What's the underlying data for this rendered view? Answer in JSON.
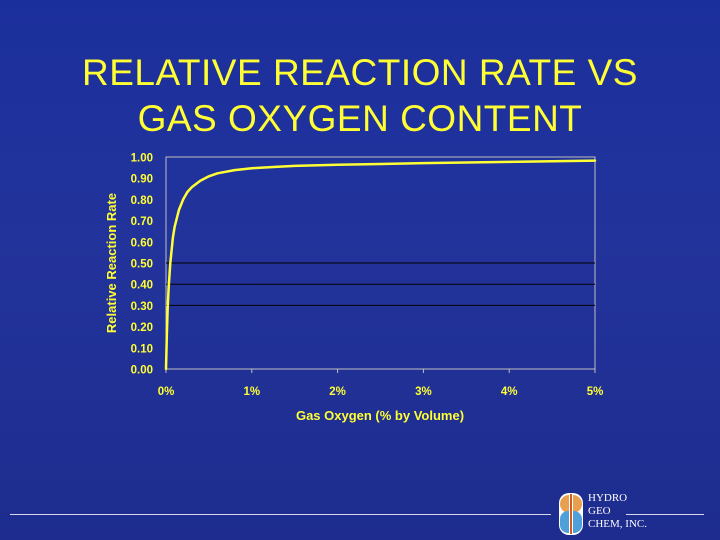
{
  "slide": {
    "title_lines": [
      "RELATIVE REACTION RATE VS",
      "GAS OXYGEN CONTENT"
    ]
  },
  "chart_data": {
    "type": "line",
    "xlabel": "Gas Oxygen (% by Volume)",
    "ylabel": "Relative Reaction Rate",
    "xlim": [
      0,
      5
    ],
    "ylim": [
      0,
      1
    ],
    "x_ticks": [
      "0%",
      "1%",
      "2%",
      "3%",
      "4%",
      "5%"
    ],
    "y_ticks": [
      "0.00",
      "0.10",
      "0.20",
      "0.30",
      "0.40",
      "0.50",
      "0.60",
      "0.70",
      "0.80",
      "0.90",
      "1.00"
    ],
    "gridlines_y": [
      0.3,
      0.4,
      0.5
    ],
    "series": [
      {
        "color": "#ffff33",
        "x": [
          0,
          0.01,
          0.02,
          0.03,
          0.05,
          0.08,
          0.1,
          0.15,
          0.2,
          0.25,
          0.3,
          0.4,
          0.5,
          0.6,
          0.8,
          1.0,
          1.25,
          1.5,
          2.0,
          2.5,
          3.0,
          3.5,
          4.0,
          4.5,
          5.0
        ],
        "y": [
          0,
          0.17,
          0.29,
          0.38,
          0.5,
          0.62,
          0.67,
          0.75,
          0.8,
          0.835,
          0.857,
          0.888,
          0.909,
          0.923,
          0.938,
          0.947,
          0.953,
          0.958,
          0.963,
          0.967,
          0.971,
          0.974,
          0.977,
          0.98,
          0.983
        ]
      }
    ]
  },
  "footer": {
    "company_lines": [
      "HYDRO",
      "GEO",
      "CHEM, INC."
    ]
  },
  "colors": {
    "background": "#1f319b",
    "accent": "#ffff33",
    "frame": "#c0c0c0",
    "gridline": "#000000"
  }
}
